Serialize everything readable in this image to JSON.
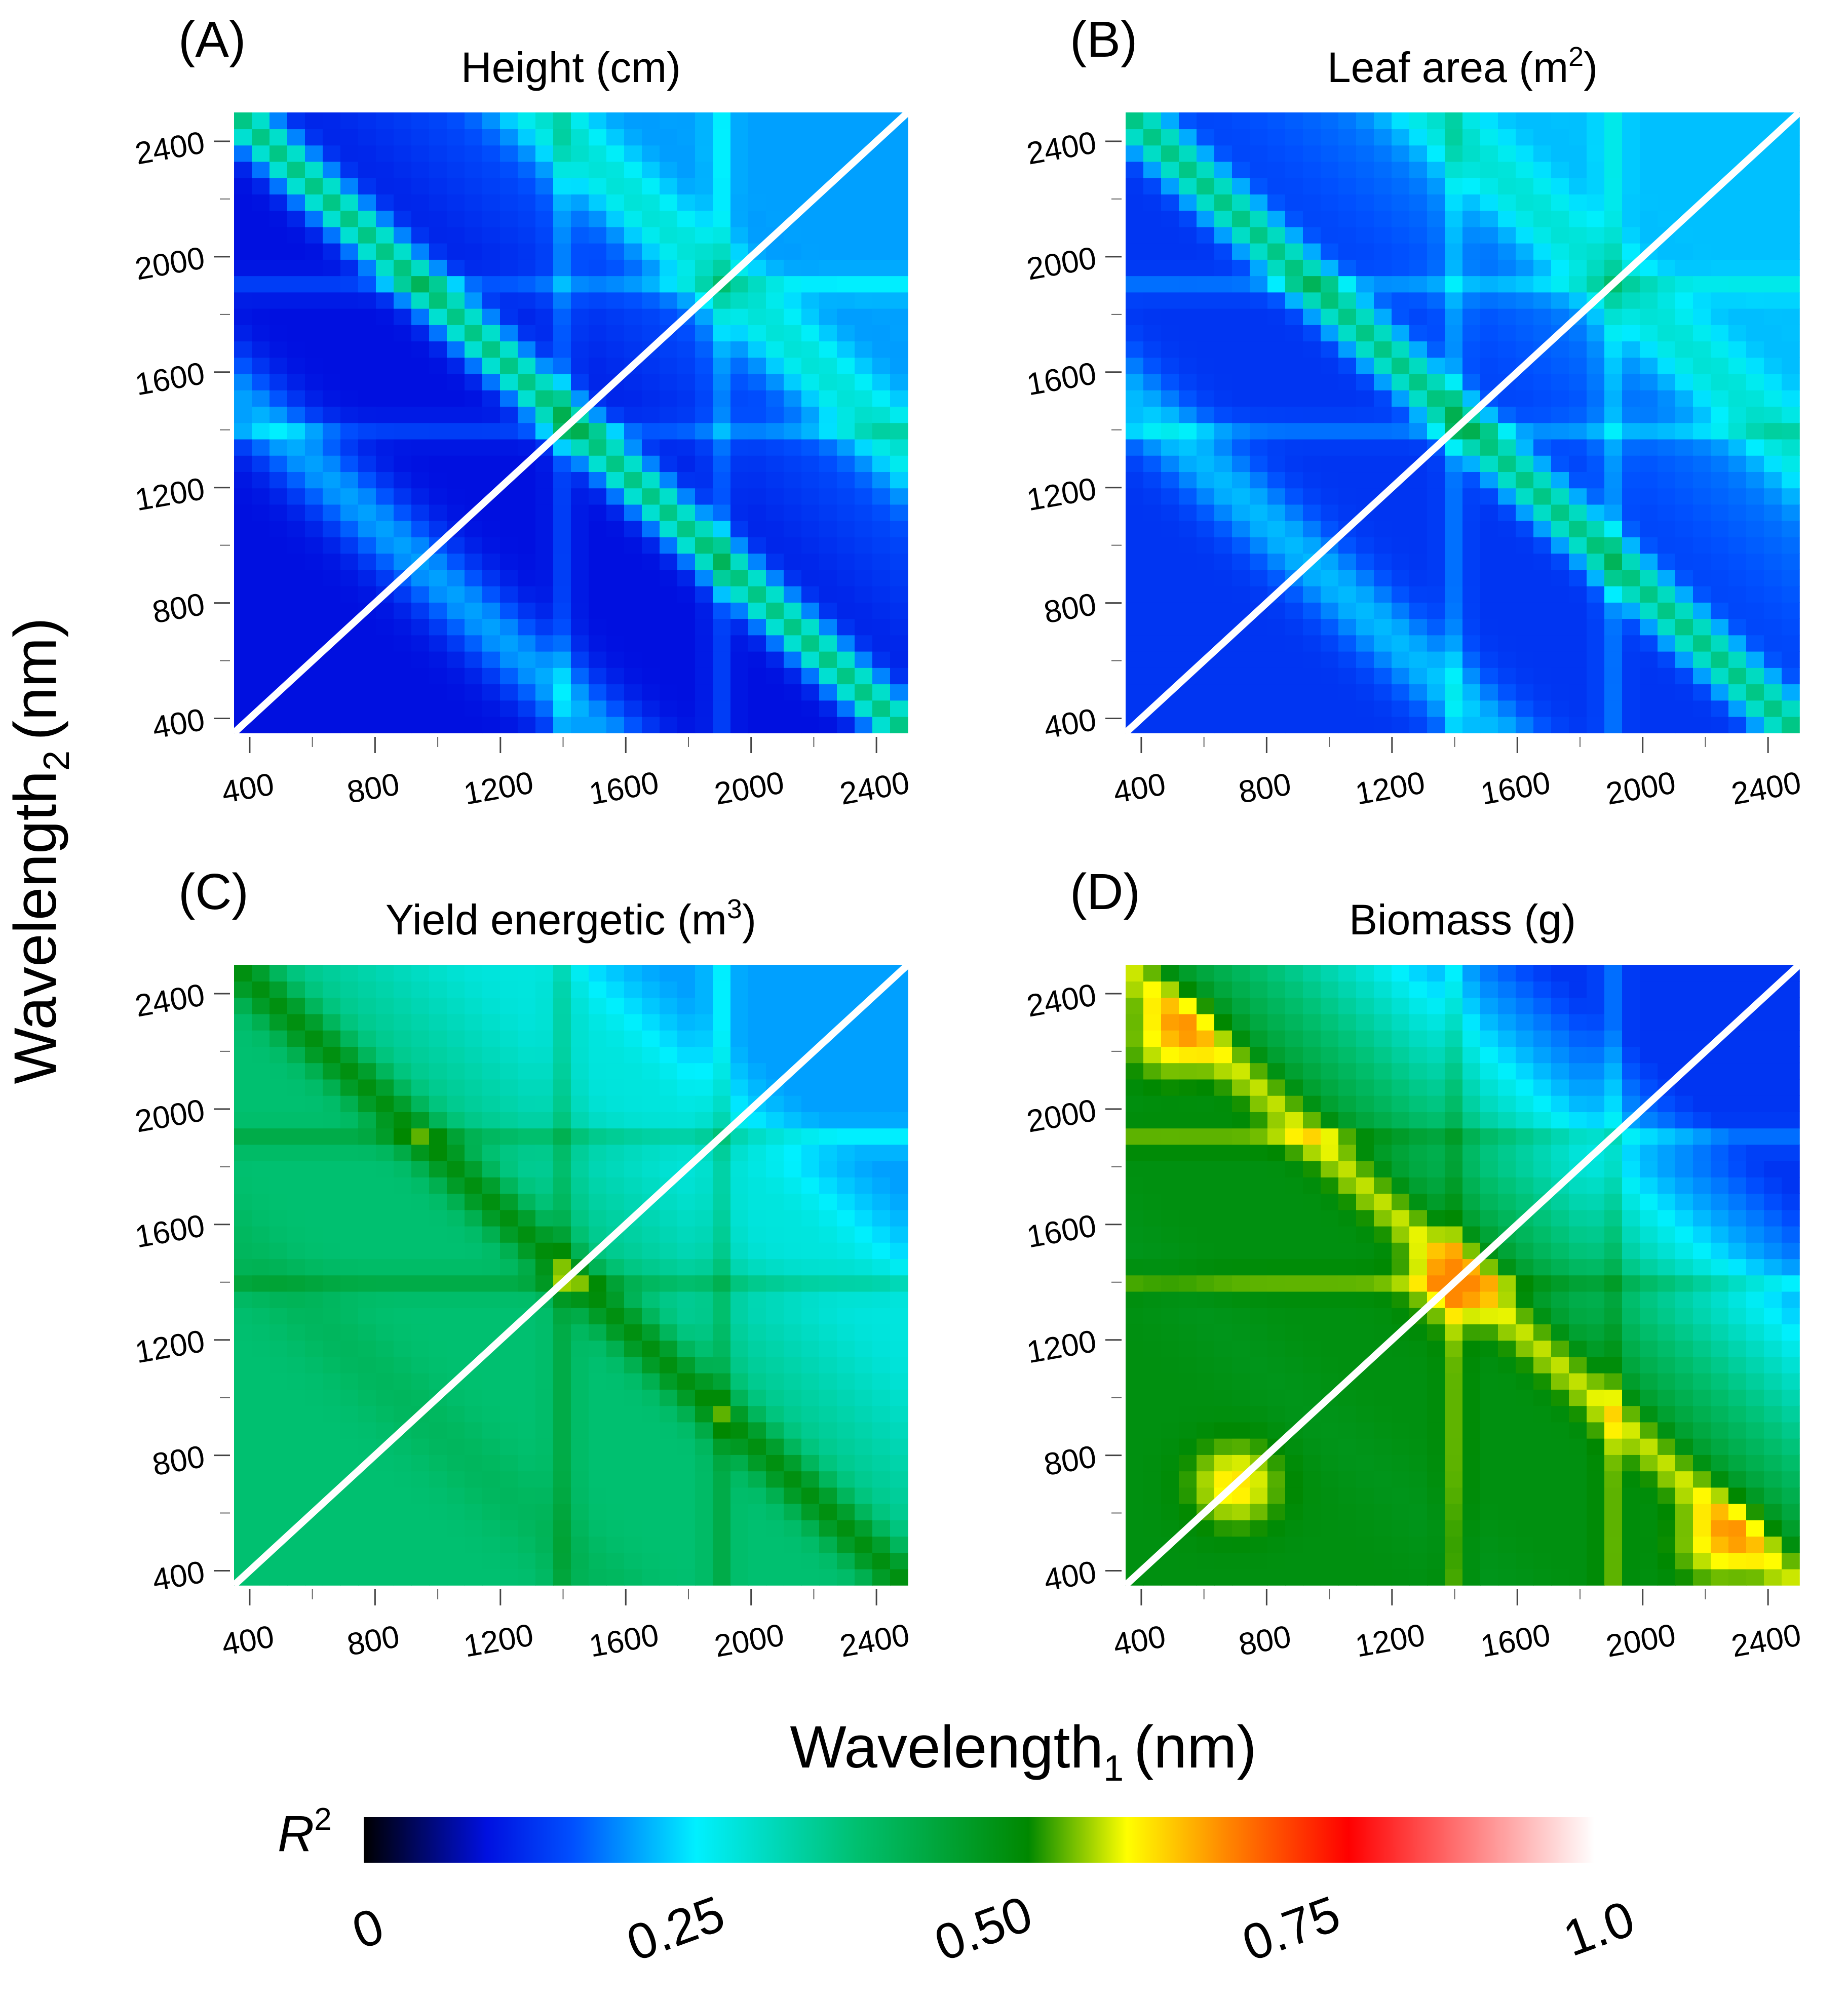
{
  "figure": {
    "ylabel_main": "Wavelength",
    "ylabel_sub": "2",
    "ylabel_unit": "(nm)",
    "xlabel_main": "Wavelength",
    "xlabel_sub": "1",
    "xlabel_unit": "(nm)"
  },
  "colorbar": {
    "label": "R",
    "label_sup": "2",
    "ticks": [
      "0",
      "0.25",
      "0.50",
      "0.75",
      "1.0"
    ],
    "tick_values": [
      0,
      0.25,
      0.5,
      0.75,
      1.0
    ],
    "stops": [
      {
        "v": 0.0,
        "color": "#000000"
      },
      {
        "v": 0.1,
        "color": "#0010e0"
      },
      {
        "v": 0.17,
        "color": "#0050ff"
      },
      {
        "v": 0.27,
        "color": "#00f0ff"
      },
      {
        "v": 0.4,
        "color": "#00c070"
      },
      {
        "v": 0.54,
        "color": "#008800"
      },
      {
        "v": 0.62,
        "color": "#ffff00"
      },
      {
        "v": 0.7,
        "color": "#ff8800"
      },
      {
        "v": 0.8,
        "color": "#ff0000"
      },
      {
        "v": 1.0,
        "color": "#ffffff"
      }
    ]
  },
  "chart_data": [
    {
      "type": "heatmap",
      "panel": "(A)",
      "title": "Height (cm)",
      "title_sup": "",
      "xlabel": "Wavelength1 (nm)",
      "ylabel": "Wavelength2 (nm)",
      "xlim": [
        350,
        2500
      ],
      "ylim": [
        350,
        2500
      ],
      "xticks": [
        "400",
        "800",
        "1200",
        "1600",
        "2000",
        "2400"
      ],
      "yticks": [
        "400",
        "800",
        "1200",
        "1600",
        "2000",
        "2400"
      ],
      "xtick_values": [
        400,
        800,
        1200,
        1600,
        2000,
        2400
      ],
      "ytick_values": [
        400,
        800,
        1200,
        1600,
        2000,
        2400
      ],
      "r2_range": [
        0,
        0.45
      ],
      "profile": {
        "base": 0.1,
        "anti_diagonal": 0.38,
        "band": 0.3,
        "upper_bias": 0.12,
        "high_spots": []
      }
    },
    {
      "type": "heatmap",
      "panel": "(B)",
      "title": "Leaf area (m",
      "title_sup": "2",
      "title_close": ")",
      "xlabel": "Wavelength1 (nm)",
      "ylabel": "Wavelength2 (nm)",
      "xlim": [
        350,
        2500
      ],
      "ylim": [
        350,
        2500
      ],
      "xticks": [
        "400",
        "800",
        "1200",
        "1600",
        "2000",
        "2400"
      ],
      "yticks": [
        "400",
        "800",
        "1200",
        "1600",
        "2000",
        "2400"
      ],
      "xtick_values": [
        400,
        800,
        1200,
        1600,
        2000,
        2400
      ],
      "ytick_values": [
        400,
        800,
        1200,
        1600,
        2000,
        2400
      ],
      "r2_range": [
        0.05,
        0.45
      ],
      "profile": {
        "base": 0.14,
        "anti_diagonal": 0.38,
        "band": 0.3,
        "upper_bias": 0.1,
        "high_spots": []
      }
    },
    {
      "type": "heatmap",
      "panel": "(C)",
      "title": "Yield energetic (m",
      "title_sup": "3",
      "title_close": ")",
      "xlabel": "Wavelength1 (nm)",
      "ylabel": "Wavelength2 (nm)",
      "xlim": [
        350,
        2500
      ],
      "ylim": [
        350,
        2500
      ],
      "xticks": [
        "400",
        "800",
        "1200",
        "1600",
        "2000",
        "2400"
      ],
      "yticks": [
        "400",
        "800",
        "1200",
        "1600",
        "2000",
        "2400"
      ],
      "xtick_values": [
        400,
        800,
        1200,
        1600,
        2000,
        2400
      ],
      "ytick_values": [
        400,
        800,
        1200,
        1600,
        2000,
        2400
      ],
      "r2_range": [
        0.15,
        0.6
      ],
      "profile": {
        "base": 0.4,
        "anti_diagonal": 0.52,
        "band": 0.44,
        "upper_bias": -0.18,
        "high_spots": []
      }
    },
    {
      "type": "heatmap",
      "panel": "(D)",
      "title": "Biomass (g)",
      "title_sup": "",
      "xlabel": "Wavelength1 (nm)",
      "ylabel": "Wavelength2 (nm)",
      "xlim": [
        350,
        2500
      ],
      "ylim": [
        350,
        2500
      ],
      "xticks": [
        "400",
        "800",
        "1200",
        "1600",
        "2000",
        "2400"
      ],
      "yticks": [
        "400",
        "800",
        "1200",
        "1600",
        "2000",
        "2400"
      ],
      "xtick_values": [
        400,
        800,
        1200,
        1600,
        2000,
        2400
      ],
      "ytick_values": [
        400,
        800,
        1200,
        1600,
        2000,
        2400
      ],
      "r2_range": [
        0,
        0.65
      ],
      "profile": {
        "base": 0.52,
        "anti_diagonal": 0.6,
        "band": 0.5,
        "upper_bias": -0.38,
        "high_spots": [
          [
            700,
            700
          ],
          [
            1400,
            1400
          ],
          [
            2250,
            500
          ],
          [
            500,
            2250
          ]
        ]
      }
    }
  ]
}
